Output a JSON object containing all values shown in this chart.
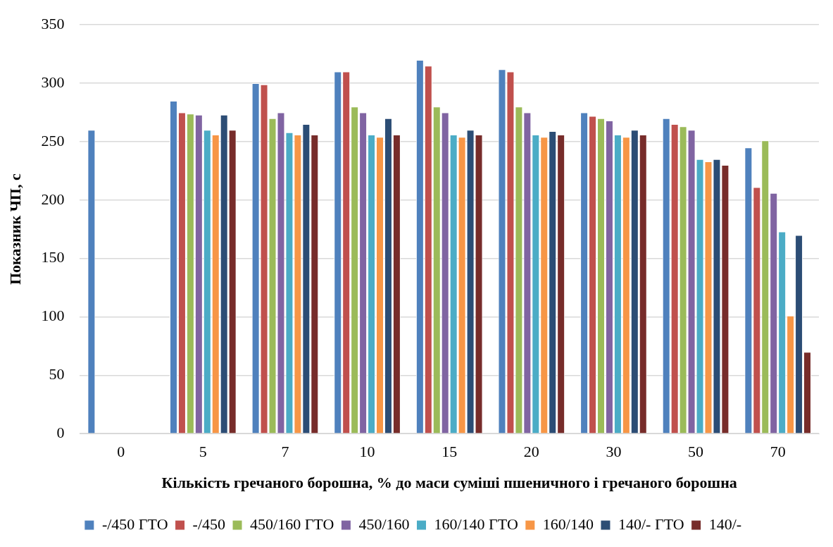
{
  "chart_data": {
    "type": "bar",
    "categories": [
      "0",
      "5",
      "7",
      "10",
      "15",
      "20",
      "30",
      "50",
      "70"
    ],
    "xlabel": "Кількість гречаного борошна, % до маси суміші пшеничного і гречаного борошна",
    "ylabel": "Показник ЧП, с",
    "ylim": [
      0,
      350
    ],
    "yticks": [
      0,
      50,
      100,
      150,
      200,
      250,
      300,
      350
    ],
    "grid": "y",
    "legend": "bottom",
    "series": [
      {
        "name": "-/450 ГТО",
        "color": "#4f81bd",
        "values": [
          260,
          285,
          300,
          310,
          320,
          312,
          275,
          270,
          245
        ]
      },
      {
        "name": "-/450",
        "color": "#c0504d",
        "values": [
          null,
          275,
          299,
          310,
          315,
          310,
          272,
          265,
          211
        ]
      },
      {
        "name": "450/160 ГТО",
        "color": "#9bbb59",
        "values": [
          null,
          274,
          270,
          280,
          280,
          280,
          270,
          263,
          251
        ]
      },
      {
        "name": "450/160",
        "color": "#8064a2",
        "values": [
          null,
          273,
          275,
          275,
          275,
          275,
          268,
          260,
          206
        ]
      },
      {
        "name": "160/140 ГТО",
        "color": "#4bacc6",
        "values": [
          null,
          260,
          258,
          256,
          256,
          256,
          256,
          235,
          173
        ]
      },
      {
        "name": "160/140",
        "color": "#f79646",
        "values": [
          null,
          256,
          256,
          254,
          254,
          254,
          254,
          233,
          101
        ]
      },
      {
        "name": "140/- ГТО",
        "color": "#2c4d75",
        "values": [
          null,
          273,
          265,
          270,
          260,
          259,
          260,
          235,
          170
        ]
      },
      {
        "name": "140/-",
        "color": "#772c2a",
        "values": [
          null,
          260,
          256,
          256,
          256,
          256,
          256,
          230,
          70
        ]
      }
    ]
  }
}
